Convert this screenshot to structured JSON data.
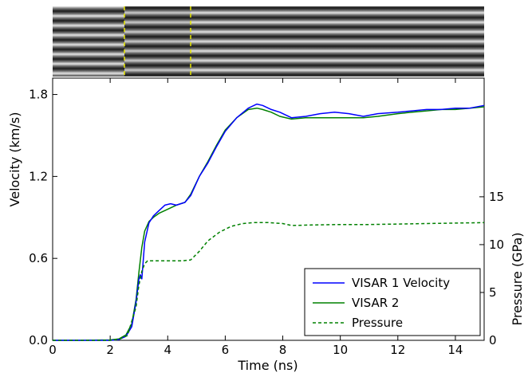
{
  "chart_data": {
    "type": "line",
    "xlabel": "Time (ns)",
    "ylabel": "Velocity (km/s)",
    "y2label": "Pressure (GPa)",
    "xlim": [
      0,
      15
    ],
    "ylim": [
      0,
      1.92
    ],
    "y2lim": [
      0,
      27.4
    ],
    "xticks": [
      "0",
      "2",
      "4",
      "6",
      "8",
      "10",
      "12",
      "14"
    ],
    "yticks": [
      "0.0",
      "0.6",
      "1.2",
      "1.8"
    ],
    "y2ticks": [
      "0",
      "5",
      "10",
      "15"
    ],
    "grid": false,
    "legend_position": "bottom-right",
    "inset_image": {
      "description_color": "grayscale streak fringes",
      "marker_lines_x": [
        2.5,
        4.8
      ],
      "marker_color": "#e6e600"
    },
    "series": [
      {
        "name": "VISAR 1 Velocity",
        "color": "#0000ff",
        "style": "solid",
        "axis": "left",
        "x": [
          0,
          1,
          2,
          2.3,
          2.55,
          2.75,
          2.9,
          3.0,
          3.05,
          3.1,
          3.2,
          3.35,
          3.5,
          3.7,
          3.9,
          4.1,
          4.3,
          4.6,
          4.8,
          5.1,
          5.4,
          5.7,
          6.0,
          6.4,
          6.8,
          7.1,
          7.3,
          7.6,
          7.9,
          8.3,
          8.8,
          9.3,
          9.8,
          10.3,
          10.8,
          11.3,
          12,
          12.5,
          13,
          13.5,
          14,
          14.5,
          15
        ],
        "y": [
          0,
          0,
          0,
          0.005,
          0.03,
          0.1,
          0.28,
          0.45,
          0.48,
          0.45,
          0.72,
          0.86,
          0.91,
          0.95,
          0.99,
          1.0,
          0.99,
          1.01,
          1.06,
          1.2,
          1.3,
          1.42,
          1.53,
          1.63,
          1.7,
          1.73,
          1.72,
          1.69,
          1.67,
          1.63,
          1.64,
          1.66,
          1.67,
          1.66,
          1.64,
          1.66,
          1.67,
          1.68,
          1.69,
          1.69,
          1.7,
          1.7,
          1.72
        ]
      },
      {
        "name": "VISAR 2",
        "color": "#008000",
        "style": "solid",
        "axis": "left",
        "x": [
          0,
          1,
          2,
          2.3,
          2.55,
          2.75,
          2.9,
          3.0,
          3.1,
          3.2,
          3.35,
          3.5,
          3.7,
          3.9,
          4.1,
          4.3,
          4.6,
          4.8,
          5.1,
          5.4,
          5.7,
          6.0,
          6.4,
          6.8,
          7.1,
          7.3,
          7.6,
          7.9,
          8.3,
          8.8,
          9.3,
          9.8,
          10.3,
          10.8,
          11.3,
          12,
          12.5,
          13,
          13.5,
          14,
          14.5,
          15
        ],
        "y": [
          0,
          0,
          0.003,
          0.01,
          0.04,
          0.12,
          0.3,
          0.5,
          0.68,
          0.8,
          0.87,
          0.9,
          0.93,
          0.95,
          0.97,
          0.99,
          1.01,
          1.07,
          1.2,
          1.31,
          1.43,
          1.54,
          1.63,
          1.69,
          1.7,
          1.69,
          1.67,
          1.64,
          1.62,
          1.63,
          1.63,
          1.63,
          1.63,
          1.63,
          1.64,
          1.66,
          1.67,
          1.68,
          1.69,
          1.69,
          1.7,
          1.71
        ]
      },
      {
        "name": "Pressure",
        "color": "#008000",
        "style": "dashed",
        "axis": "right",
        "x": [
          0,
          1,
          2,
          2.3,
          2.6,
          2.9,
          3.0,
          3.1,
          3.2,
          3.3,
          3.5,
          4.0,
          4.5,
          4.8,
          5.1,
          5.4,
          5.8,
          6.2,
          6.6,
          7.0,
          7.5,
          8.0,
          8.3,
          9,
          10,
          11,
          12,
          13,
          14,
          15
        ],
        "y": [
          0,
          0,
          0,
          0.1,
          0.5,
          3.5,
          5.8,
          7.2,
          8.0,
          8.3,
          8.3,
          8.3,
          8.3,
          8.4,
          9.3,
          10.4,
          11.3,
          11.9,
          12.2,
          12.3,
          12.3,
          12.2,
          12.0,
          12.05,
          12.1,
          12.1,
          12.15,
          12.2,
          12.25,
          12.3
        ]
      }
    ]
  }
}
